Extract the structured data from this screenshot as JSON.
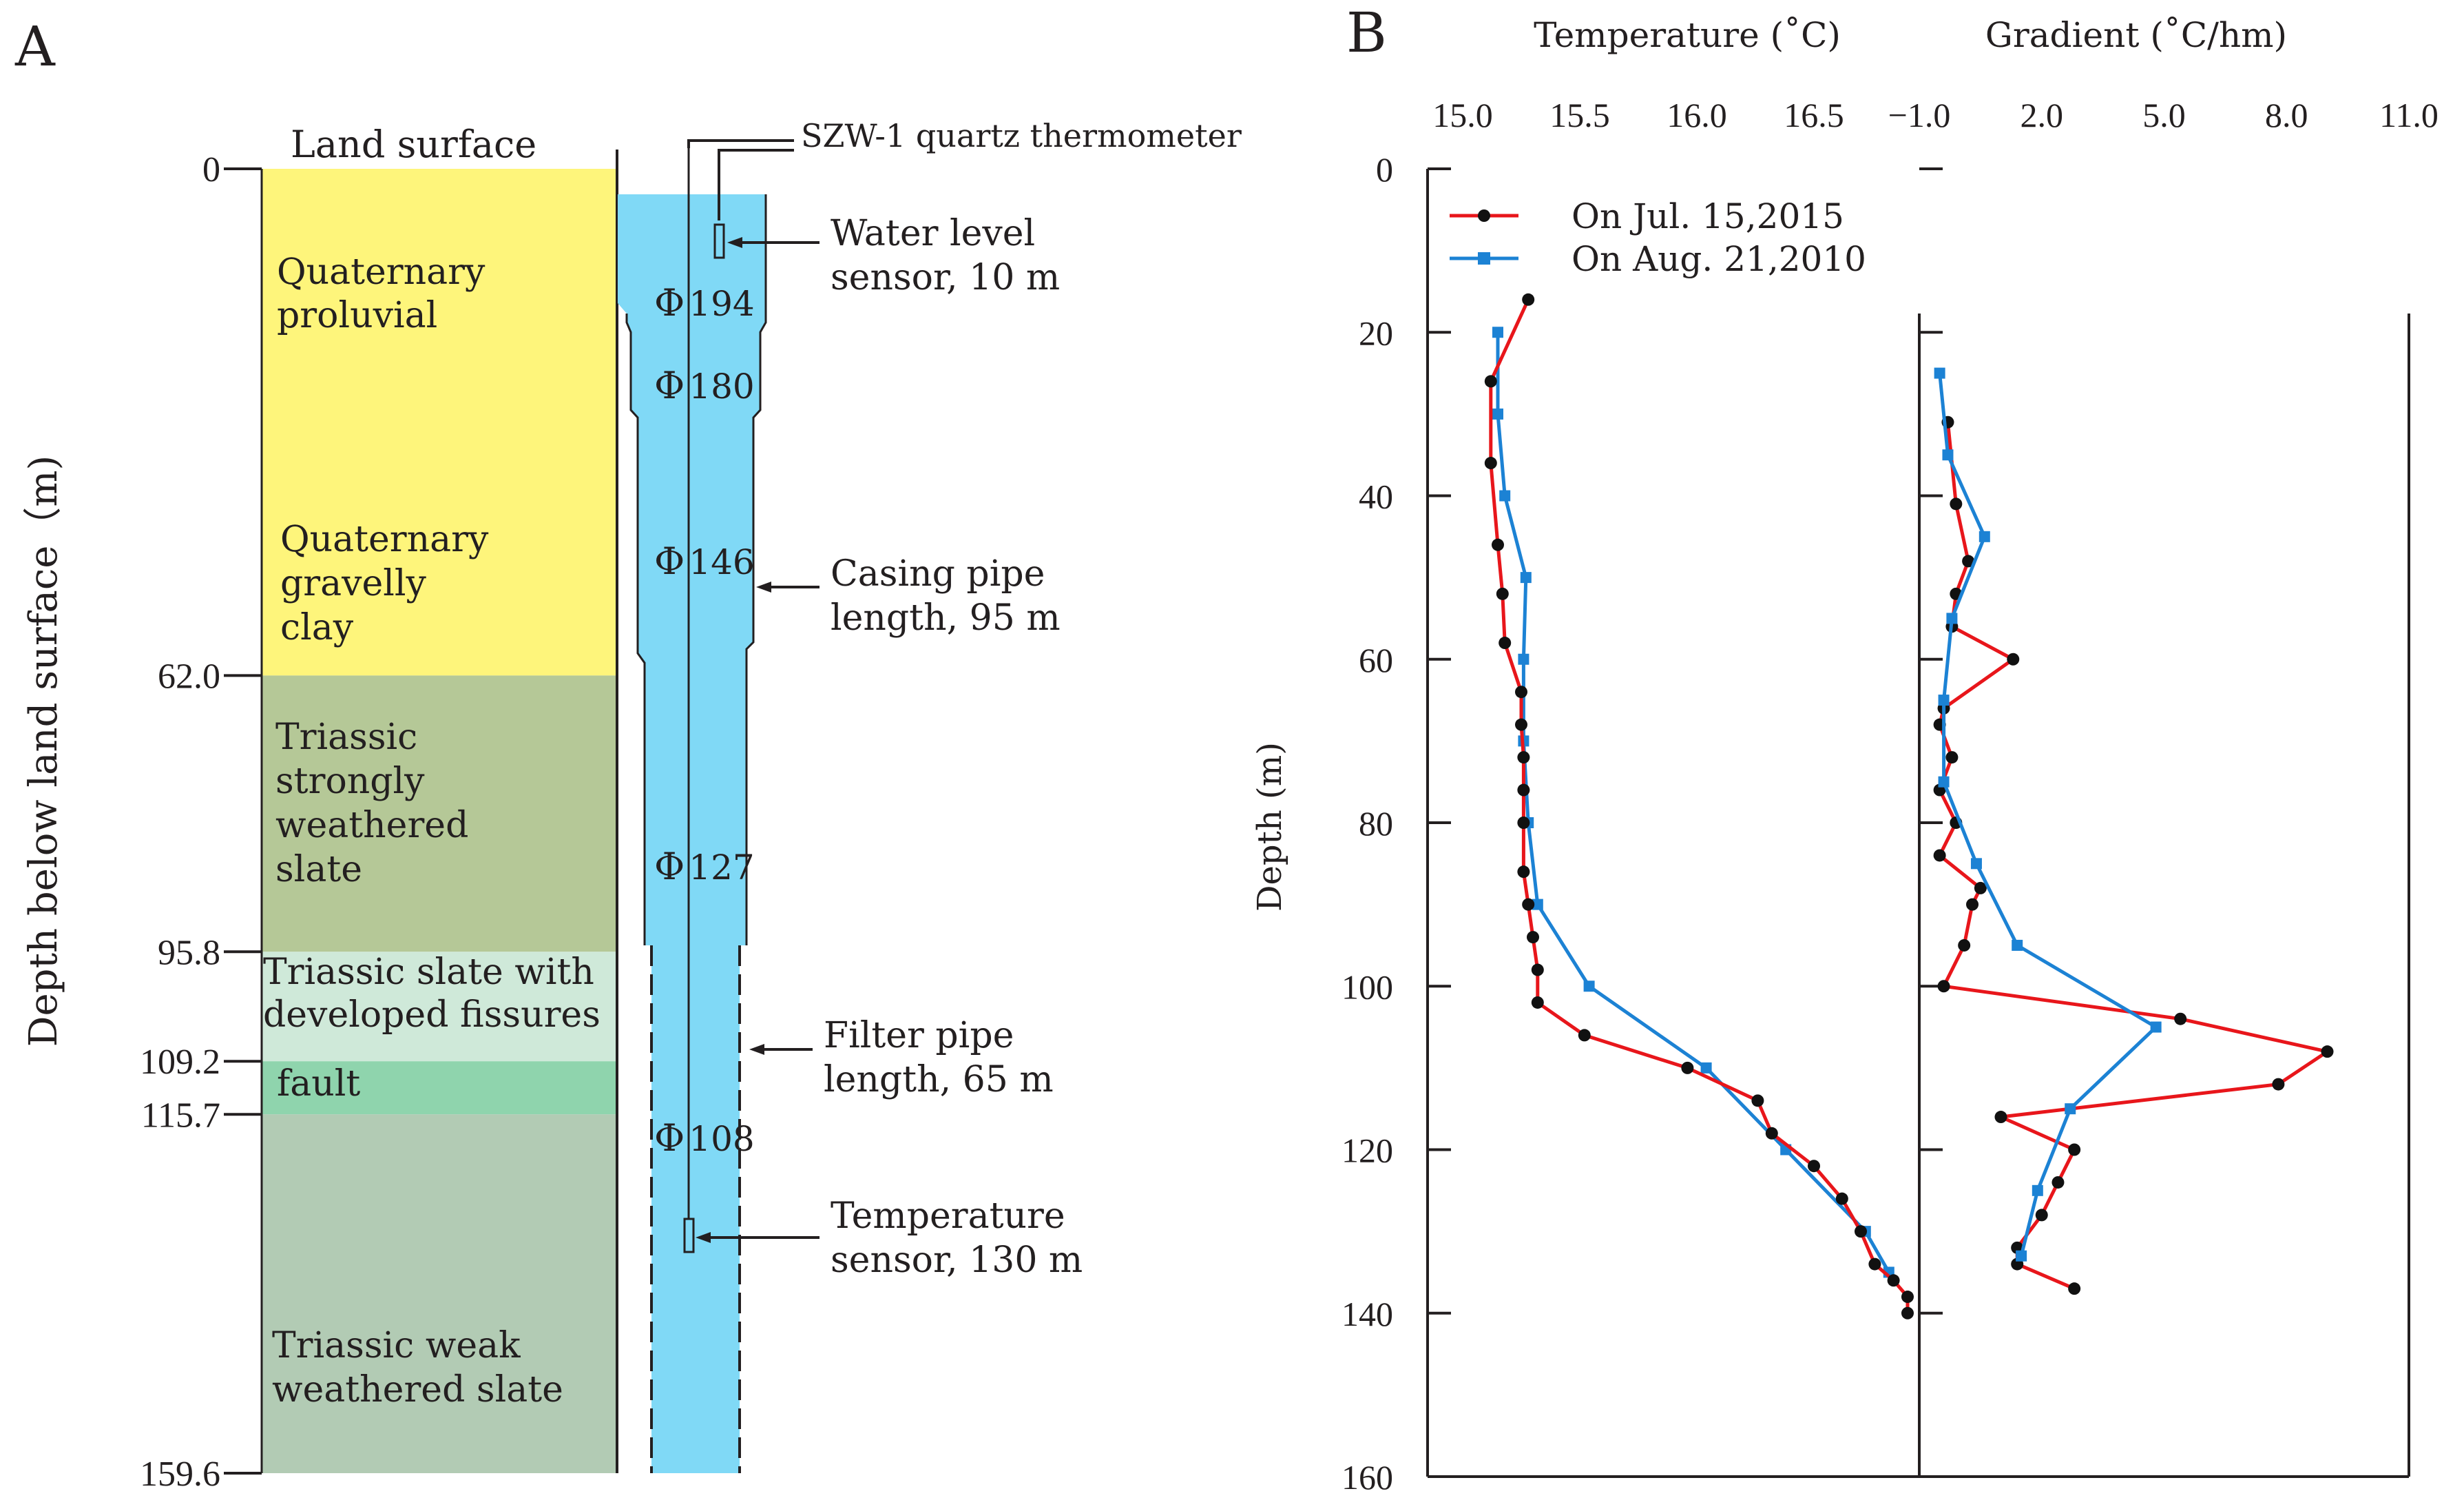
{
  "panelA": {
    "letter": "A",
    "y_label": "Depth below land surface（m)",
    "land_surface": "Land surface",
    "depth_ticks": [
      "0",
      "62.0",
      "95.8",
      "109.2",
      "115.7",
      "159.6"
    ],
    "colors": {
      "quaternary": "#fef57b",
      "strongly_weathered": "#b5c897",
      "fissured": "#cfe9d9",
      "fault": "#8fd4ad",
      "weak_weathered": "#b2cbb4",
      "well": "#80d9f6"
    },
    "strata": [
      {
        "top": 0,
        "bottom": 62.0,
        "color_key": "quaternary",
        "lines": []
      },
      {
        "top": 62.0,
        "bottom": 95.8,
        "color_key": "strongly_weathered",
        "lines": [
          "Triassic",
          "strongly",
          "weathered",
          "slate"
        ]
      },
      {
        "top": 95.8,
        "bottom": 109.2,
        "color_key": "fissured",
        "lines": [
          "Triassic slate  with",
          "developed fissures"
        ]
      },
      {
        "top": 109.2,
        "bottom": 115.7,
        "color_key": "fault",
        "lines": [
          "fault"
        ]
      },
      {
        "top": 115.7,
        "bottom": 159.6,
        "color_key": "weak_weathered",
        "lines": [
          "Triassic weak",
          "weathered slate"
        ]
      }
    ],
    "quaternary_proluvial": [
      "Quaternary",
      "proluvial"
    ],
    "quaternary_gravelly": [
      "Quaternary",
      "gravelly",
      "clay"
    ],
    "diameters": [
      "194",
      "180",
      "146",
      "127",
      "108"
    ],
    "diameter_symbol": "Φ",
    "annotations": {
      "thermometer": "SZW-1 quartz thermometer",
      "water_level": [
        "Water level",
        "sensor, 10 m"
      ],
      "casing": [
        "Casing pipe",
        "length, 95 m"
      ],
      "filter": [
        "Filter pipe",
        "length, 65 m"
      ],
      "temp_sensor": [
        "Temperature",
        "sensor, 130 m"
      ]
    }
  },
  "panelB": {
    "letter": "B",
    "temp_title": "Temperature (˚C)",
    "grad_title": "Gradient (˚C/hm)",
    "depth_label": "Depth (m)",
    "colors": {
      "series2015": "#e8161b",
      "series2010": "#1c82d4",
      "marker2015": "#111111"
    }
  },
  "chart_data": [
    {
      "type": "line",
      "title": "Temperature (˚C)",
      "xlabel": "Temperature (˚C)",
      "ylabel": "Depth (m)",
      "xlim": [
        14.85,
        16.95
      ],
      "ylim": [
        160,
        0
      ],
      "xticks": [
        "15.0",
        "15.5",
        "16.0",
        "16.5"
      ],
      "xtick_values": [
        15.0,
        15.5,
        16.0,
        16.5
      ],
      "yticks": [
        "0",
        "20",
        "40",
        "60",
        "80",
        "100",
        "120",
        "140",
        "160"
      ],
      "legend_position": "top-left",
      "series": [
        {
          "name": "On Jul. 15,2015",
          "marker": "circle",
          "points": [
            [
              15.28,
              16
            ],
            [
              15.12,
              26
            ],
            [
              15.12,
              36
            ],
            [
              15.15,
              46
            ],
            [
              15.17,
              52
            ],
            [
              15.18,
              58
            ],
            [
              15.25,
              64
            ],
            [
              15.25,
              68
            ],
            [
              15.26,
              72
            ],
            [
              15.26,
              76
            ],
            [
              15.26,
              80
            ],
            [
              15.26,
              86
            ],
            [
              15.28,
              90
            ],
            [
              15.3,
              94
            ],
            [
              15.32,
              98
            ],
            [
              15.32,
              102
            ],
            [
              15.52,
              106
            ],
            [
              15.96,
              110
            ],
            [
              16.26,
              114
            ],
            [
              16.32,
              118
            ],
            [
              16.5,
              122
            ],
            [
              16.62,
              126
            ],
            [
              16.7,
              130
            ],
            [
              16.76,
              134
            ],
            [
              16.84,
              136
            ],
            [
              16.9,
              138
            ],
            [
              16.9,
              140
            ]
          ]
        },
        {
          "name": "On Aug. 21,2010",
          "marker": "square",
          "points": [
            [
              15.15,
              20
            ],
            [
              15.15,
              30
            ],
            [
              15.18,
              40
            ],
            [
              15.27,
              50
            ],
            [
              15.26,
              60
            ],
            [
              15.26,
              70
            ],
            [
              15.28,
              80
            ],
            [
              15.32,
              90
            ],
            [
              15.54,
              100
            ],
            [
              16.04,
              110
            ],
            [
              16.38,
              120
            ],
            [
              16.72,
              130
            ],
            [
              16.82,
              135
            ]
          ]
        }
      ]
    },
    {
      "type": "line",
      "title": "Gradient (˚C/hm)",
      "xlabel": "Gradient (˚C/hm)",
      "ylabel": "Depth (m)",
      "xlim": [
        -1.0,
        11.0
      ],
      "ylim": [
        160,
        0
      ],
      "xticks": [
        "−1.0",
        "2.0",
        "5.0",
        "8.0",
        "11.0"
      ],
      "xtick_values": [
        -1.0,
        2.0,
        5.0,
        8.0,
        11.0
      ],
      "series": [
        {
          "name": "On Jul. 15,2015",
          "marker": "circle",
          "points": [
            [
              -0.3,
              31
            ],
            [
              -0.1,
              41
            ],
            [
              0.2,
              48
            ],
            [
              -0.1,
              52
            ],
            [
              -0.2,
              56
            ],
            [
              1.3,
              60
            ],
            [
              -0.4,
              66
            ],
            [
              -0.5,
              68
            ],
            [
              -0.2,
              72
            ],
            [
              -0.5,
              76
            ],
            [
              -0.1,
              80
            ],
            [
              -0.5,
              84
            ],
            [
              0.5,
              88
            ],
            [
              0.3,
              90
            ],
            [
              0.1,
              95
            ],
            [
              -0.4,
              100
            ],
            [
              5.4,
              104
            ],
            [
              9.0,
              108
            ],
            [
              7.8,
              112
            ],
            [
              1.0,
              116
            ],
            [
              2.8,
              120
            ],
            [
              2.4,
              124
            ],
            [
              2.0,
              128
            ],
            [
              1.4,
              132
            ],
            [
              1.4,
              134
            ],
            [
              2.8,
              137
            ]
          ]
        },
        {
          "name": "On Aug. 21,2010",
          "marker": "square",
          "points": [
            [
              -0.5,
              25
            ],
            [
              -0.3,
              35
            ],
            [
              0.6,
              45
            ],
            [
              -0.2,
              55
            ],
            [
              -0.4,
              65
            ],
            [
              -0.4,
              75
            ],
            [
              0.4,
              85
            ],
            [
              1.4,
              95
            ],
            [
              4.8,
              105
            ],
            [
              2.7,
              115
            ],
            [
              1.9,
              125
            ],
            [
              1.5,
              133
            ]
          ]
        }
      ]
    }
  ]
}
